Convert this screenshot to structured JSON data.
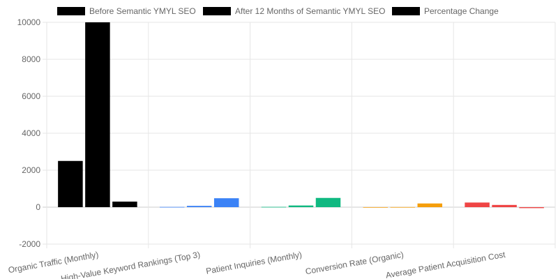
{
  "chart_data": {
    "type": "bar",
    "categories": [
      "Organic Traffic (Monthly)",
      "High-Value Keyword Rankings (Top 3)",
      "Patient Inquiries (Monthly)",
      "Conversion Rate (Organic)",
      "Average Patient Acquisition Cost"
    ],
    "series": [
      {
        "name": "Before Semantic YMYL SEO",
        "values": [
          2500,
          12,
          15,
          1.8,
          250
        ]
      },
      {
        "name": "After 12 Months of Semantic YMYL SEO",
        "values": [
          10000,
          70,
          90,
          5.4,
          120
        ]
      },
      {
        "name": "Percentage Change",
        "values": [
          300,
          483,
          500,
          200,
          -52
        ]
      }
    ],
    "bar_colors": [
      "#000000",
      "#3b82f6",
      "#10b981",
      "#f59e0b",
      "#ef4444"
    ],
    "legend_swatch_color": "#000000",
    "y_ticks": [
      -2000,
      0,
      2000,
      4000,
      6000,
      8000,
      10000
    ],
    "ylim": [
      -2000,
      10000
    ],
    "grid": true,
    "legend_position": "top"
  }
}
